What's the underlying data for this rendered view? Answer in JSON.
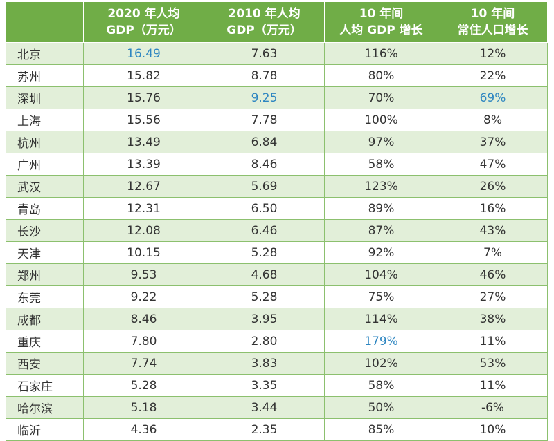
{
  "chart_data": {
    "type": "table",
    "columns": [
      "",
      "2020 年人均\nGDP（万元）",
      "2010 年人均\nGDP（万元）",
      "10 年间\n人均 GDP 增长",
      "10 年间\n常住人口增长"
    ],
    "rows": [
      {
        "city": "北京",
        "gdp2020": "16.49",
        "gdp2010": "7.63",
        "gdp_growth": "116%",
        "pop_growth": "12%"
      },
      {
        "city": "苏州",
        "gdp2020": "15.82",
        "gdp2010": "8.78",
        "gdp_growth": "80%",
        "pop_growth": "22%"
      },
      {
        "city": "深圳",
        "gdp2020": "15.76",
        "gdp2010": "9.25",
        "gdp_growth": "70%",
        "pop_growth": "69%"
      },
      {
        "city": "上海",
        "gdp2020": "15.56",
        "gdp2010": "7.78",
        "gdp_growth": "100%",
        "pop_growth": "8%"
      },
      {
        "city": "杭州",
        "gdp2020": "13.49",
        "gdp2010": "6.84",
        "gdp_growth": "97%",
        "pop_growth": "37%"
      },
      {
        "city": "广州",
        "gdp2020": "13.39",
        "gdp2010": "8.46",
        "gdp_growth": "58%",
        "pop_growth": "47%"
      },
      {
        "city": "武汉",
        "gdp2020": "12.67",
        "gdp2010": "5.69",
        "gdp_growth": "123%",
        "pop_growth": "26%"
      },
      {
        "city": "青岛",
        "gdp2020": "12.31",
        "gdp2010": "6.50",
        "gdp_growth": "89%",
        "pop_growth": "16%"
      },
      {
        "city": "长沙",
        "gdp2020": "12.08",
        "gdp2010": "6.46",
        "gdp_growth": "87%",
        "pop_growth": "43%"
      },
      {
        "city": "天津",
        "gdp2020": "10.15",
        "gdp2010": "5.28",
        "gdp_growth": "92%",
        "pop_growth": "7%"
      },
      {
        "city": "郑州",
        "gdp2020": "9.53",
        "gdp2010": "4.68",
        "gdp_growth": "104%",
        "pop_growth": "46%"
      },
      {
        "city": "东莞",
        "gdp2020": "9.22",
        "gdp2010": "5.28",
        "gdp_growth": "75%",
        "pop_growth": "27%"
      },
      {
        "city": "成都",
        "gdp2020": "8.46",
        "gdp2010": "3.95",
        "gdp_growth": "114%",
        "pop_growth": "38%"
      },
      {
        "city": "重庆",
        "gdp2020": "7.80",
        "gdp2010": "2.80",
        "gdp_growth": "179%",
        "pop_growth": "11%"
      },
      {
        "city": "西安",
        "gdp2020": "7.74",
        "gdp2010": "3.83",
        "gdp_growth": "102%",
        "pop_growth": "53%"
      },
      {
        "city": "石家庄",
        "gdp2020": "5.28",
        "gdp2010": "3.35",
        "gdp_growth": "58%",
        "pop_growth": "11%"
      },
      {
        "city": "哈尔滨",
        "gdp2020": "5.18",
        "gdp2010": "3.44",
        "gdp_growth": "50%",
        "pop_growth": "-6%"
      },
      {
        "city": "临沂",
        "gdp2020": "4.36",
        "gdp2010": "2.35",
        "gdp_growth": "85%",
        "pop_growth": "10%"
      }
    ],
    "highlighted_cells": [
      {
        "row": "北京",
        "column": "gdp2020"
      },
      {
        "row": "深圳",
        "column": "gdp2010"
      },
      {
        "row": "重庆",
        "column": "gdp_growth"
      },
      {
        "row": "深圳",
        "column": "pop_growth"
      }
    ]
  },
  "colors": {
    "header_bg": "#70ad47",
    "header_text": "#ffffff",
    "odd_row_bg": "#e2efd9",
    "even_row_bg": "#ffffff",
    "highlight_text": "#2e86c1",
    "body_text": "#333333"
  }
}
